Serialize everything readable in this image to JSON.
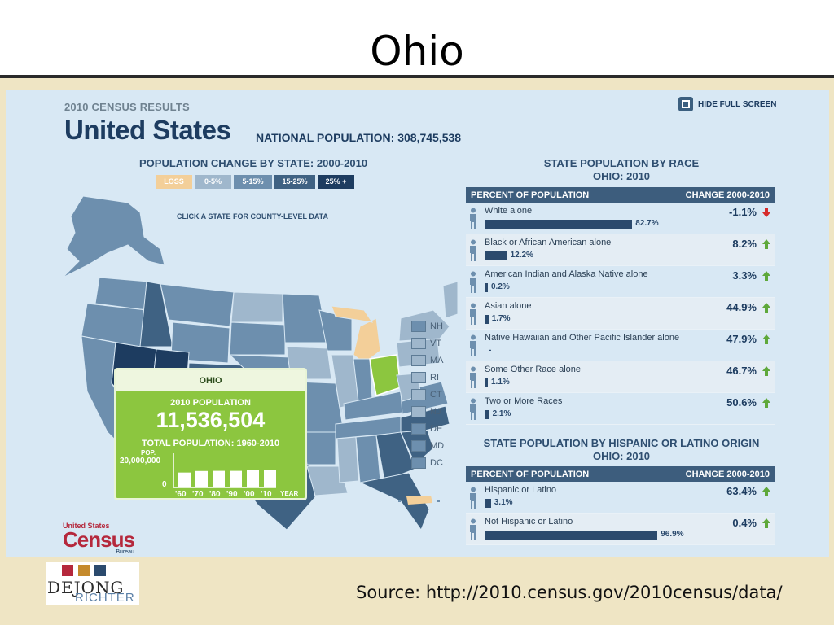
{
  "slide": {
    "title": "Ohio",
    "source": "Source:  http://2010.census.gov/2010census/data/"
  },
  "census": {
    "label": "2010 CENSUS RESULTS",
    "country": "United States",
    "national_population": "NATIONAL POPULATION: 308,745,538",
    "hide_full_screen": "HIDE FULL SCREEN",
    "logo_top": "United States",
    "logo_main": "Census",
    "logo_bottom": "Bureau"
  },
  "map": {
    "title": "POPULATION CHANGE BY STATE: 2000-2010",
    "legend": [
      {
        "label": "LOSS",
        "color": "#f3cf99",
        "text": "#ffffff"
      },
      {
        "label": "0-5%",
        "color": "#9fb7cc",
        "text": "#ffffff"
      },
      {
        "label": "5-15%",
        "color": "#6d8fae",
        "text": "#ffffff"
      },
      {
        "label": "15-25%",
        "color": "#3f6283",
        "text": "#ffffff"
      },
      {
        "label": "25% +",
        "color": "#1d3c60",
        "text": "#ffffff"
      }
    ],
    "hint": "CLICK A STATE FOR COUNTY-LEVEL DATA",
    "small_states": [
      {
        "label": "NH",
        "color": "#6d8fae"
      },
      {
        "label": "VT",
        "color": "#9fb7cc"
      },
      {
        "label": "MA",
        "color": "#9fb7cc"
      },
      {
        "label": "RI",
        "color": "#9fb7cc"
      },
      {
        "label": "CT",
        "color": "#9fb7cc"
      },
      {
        "label": "NJ",
        "color": "#9fb7cc"
      },
      {
        "label": "DE",
        "color": "#6d8fae"
      },
      {
        "label": "MD",
        "color": "#6d8fae"
      },
      {
        "label": "DC",
        "color": "#6d8fae"
      }
    ]
  },
  "ohio_card": {
    "state": "OHIO",
    "pop_label": "2010 POPULATION",
    "pop_value": "11,536,504",
    "total_label": "TOTAL POPULATION: 1960-2010",
    "axis_unit": "POP.",
    "axis_max": "20,000,000",
    "axis_min": "0",
    "years": [
      "'60",
      "'70",
      "'80",
      "'90",
      "'00",
      "'10"
    ],
    "year_label": "YEAR"
  },
  "race": {
    "title_1": "STATE POPULATION BY RACE",
    "title_2": "OHIO: 2010",
    "col_left": "PERCENT OF POPULATION",
    "col_right": "CHANGE 2000-2010",
    "rows": [
      {
        "label": "White alone",
        "pct": 82.7,
        "pct_text": "82.7%",
        "change": "-1.1%",
        "dir": "down"
      },
      {
        "label": "Black or African American alone",
        "pct": 12.2,
        "pct_text": "12.2%",
        "change": "8.2%",
        "dir": "up"
      },
      {
        "label": "American Indian and Alaska Native alone",
        "pct": 0.2,
        "pct_text": "0.2%",
        "change": "3.3%",
        "dir": "up"
      },
      {
        "label": "Asian alone",
        "pct": 1.7,
        "pct_text": "1.7%",
        "change": "44.9%",
        "dir": "up"
      },
      {
        "label": "Native Hawaiian and Other Pacific Islander alone",
        "pct": 0,
        "pct_text": "-",
        "change": "47.9%",
        "dir": "up"
      },
      {
        "label": "Some Other Race alone",
        "pct": 1.1,
        "pct_text": "1.1%",
        "change": "46.7%",
        "dir": "up"
      },
      {
        "label": "Two or More Races",
        "pct": 2.1,
        "pct_text": "2.1%",
        "change": "50.6%",
        "dir": "up"
      }
    ]
  },
  "hispanic": {
    "title_1": "STATE POPULATION BY HISPANIC OR LATINO ORIGIN",
    "title_2": "OHIO: 2010",
    "col_left": "PERCENT OF POPULATION",
    "col_right": "CHANGE 2000-2010",
    "rows": [
      {
        "label": "Hispanic or Latino",
        "pct": 3.1,
        "pct_text": "3.1%",
        "change": "63.4%",
        "dir": "up"
      },
      {
        "label": "Not Hispanic or Latino",
        "pct": 96.9,
        "pct_text": "96.9%",
        "change": "0.4%",
        "dir": "up"
      }
    ]
  },
  "footer_logo": {
    "line1": "DEJONG",
    "line2": "RICHTER"
  },
  "colors": {
    "up": "#5ea83a",
    "down": "#d62b2b",
    "bar": "#2b4a6d",
    "ohio": "#8cc63f",
    "loss": "#f3cf99"
  }
}
